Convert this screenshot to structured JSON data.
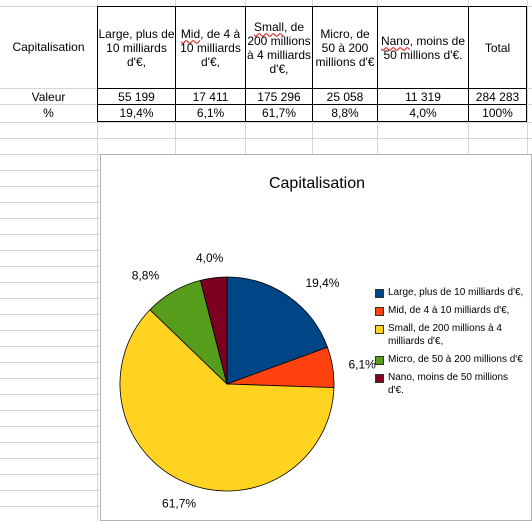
{
  "table": {
    "header": [
      "Capitalisation",
      "Large, plus de 10 milliards d'€,",
      "Mid, de 4 à 10 milliards d'€,",
      "Small, de 200 millions à 4 milliards d'€,",
      "Micro, de 50 à 200 millions d'€",
      "Nano, moins de 50 millions d'€.",
      "Total"
    ],
    "row_valeur": [
      "Valeur",
      "55 199",
      "17 411",
      "175 296",
      "25 058",
      "11 319",
      "284 283"
    ],
    "row_pct": [
      "%",
      "19,4%",
      "6,1%",
      "61,7%",
      "8,8%",
      "4,0%",
      "100%"
    ]
  },
  "chart_data": {
    "type": "pie",
    "title": "Capitalisation",
    "categories": [
      "Large, plus de 10 milliards d'€,",
      "Mid, de 4 à 10 milliards d'€,",
      "Small, de 200 millions à 4 milliards d'€,",
      "Micro, de 50 à 200 millions d'€",
      "Nano, moins de 50 millions d'€."
    ],
    "values": [
      55199,
      17411,
      175296,
      25058,
      11319
    ],
    "data_labels": [
      "19,4%",
      "6,1%",
      "61,7%",
      "8,8%",
      "4,0%"
    ],
    "colors": [
      "#004586",
      "#ff420e",
      "#ffd320",
      "#579d1c",
      "#7e0021"
    ],
    "legend_position": "right"
  }
}
